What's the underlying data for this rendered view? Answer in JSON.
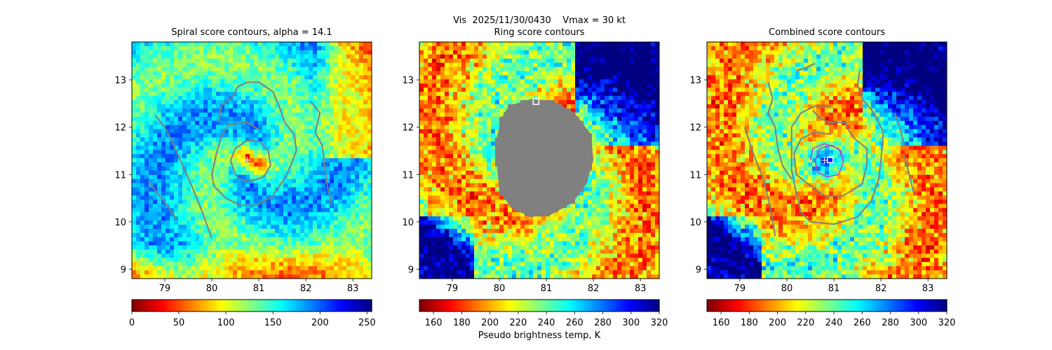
{
  "figure": {
    "suptitle": "Vis  2025/11/30/0430    Vmax = 30 kt",
    "colorbar_label": "Pseudo brightness temp, K"
  },
  "chart_data": [
    {
      "type": "heatmap",
      "title": "Spiral score contours, alpha = 14.1",
      "xlim": [
        78.3,
        83.4
      ],
      "ylim": [
        8.8,
        13.8
      ],
      "xticks": [
        79,
        80,
        81,
        82,
        83
      ],
      "yticks": [
        9,
        10,
        11,
        12,
        13
      ],
      "colormap": "jet_r",
      "colorbar": {
        "range": [
          0,
          255
        ],
        "ticks": [
          0,
          50,
          100,
          150,
          200,
          250
        ]
      },
      "marker": {
        "type": "plus",
        "x": 80.75,
        "y": 11.3,
        "color": "#f4d0d0"
      },
      "contour_color": "#7f7f7f",
      "contours": [
        [
          [
            80.5,
            11.0
          ],
          [
            80.6,
            10.9
          ],
          [
            80.8,
            10.85
          ],
          [
            81.1,
            10.95
          ],
          [
            81.25,
            11.2
          ],
          [
            81.2,
            11.5
          ],
          [
            81.0,
            11.7
          ],
          [
            80.75,
            11.72
          ],
          [
            80.5,
            11.55
          ],
          [
            80.4,
            11.3
          ],
          [
            80.5,
            11.0
          ]
        ],
        [
          [
            81.0,
            11.95
          ],
          [
            80.75,
            12.1
          ],
          [
            80.35,
            12.05
          ],
          [
            80.2,
            11.8
          ],
          [
            80.1,
            11.45
          ],
          [
            80.0,
            11.0
          ],
          [
            80.05,
            10.75
          ],
          [
            80.3,
            10.5
          ],
          [
            80.6,
            10.35
          ],
          [
            80.95,
            10.35
          ],
          [
            81.3,
            10.55
          ],
          [
            81.6,
            11.0
          ],
          [
            81.8,
            11.5
          ],
          [
            81.75,
            11.85
          ],
          [
            81.55,
            12.1
          ],
          [
            81.45,
            12.4
          ],
          [
            81.3,
            12.75
          ],
          [
            81.0,
            12.95
          ],
          [
            80.75,
            12.95
          ],
          [
            80.55,
            12.85
          ],
          [
            80.45,
            12.65
          ],
          [
            80.2,
            12.45
          ],
          [
            80.15,
            12.1
          ]
        ],
        [
          [
            82.1,
            12.55
          ],
          [
            82.3,
            12.3
          ],
          [
            82.2,
            11.9
          ],
          [
            82.35,
            11.6
          ],
          [
            82.4,
            11.2
          ],
          [
            82.45,
            10.8
          ],
          [
            82.55,
            10.35
          ]
        ],
        [
          [
            78.8,
            12.25
          ],
          [
            79.0,
            12.0
          ],
          [
            79.2,
            11.6
          ],
          [
            79.4,
            11.15
          ],
          [
            79.6,
            10.7
          ],
          [
            79.8,
            10.2
          ],
          [
            80.0,
            9.65
          ]
        ],
        [
          [
            78.65,
            10.85
          ],
          [
            78.85,
            10.6
          ],
          [
            79.05,
            10.35
          ],
          [
            79.25,
            10.05
          ]
        ]
      ]
    },
    {
      "type": "heatmap",
      "title": "Ring score contours",
      "xlim": [
        78.3,
        83.4
      ],
      "ylim": [
        8.8,
        13.8
      ],
      "xticks": [
        79,
        80,
        81,
        82,
        83
      ],
      "yticks": [
        9,
        10,
        11,
        12,
        13
      ],
      "colormap": "jet_r",
      "colorbar": {
        "range": [
          150,
          320
        ],
        "ticks": [
          160,
          180,
          200,
          220,
          240,
          260,
          280,
          300,
          320
        ]
      },
      "marker": {
        "type": "square",
        "x": 80.78,
        "y": 12.54,
        "color": "#ffffff"
      },
      "masked_region": {
        "color": "#808080",
        "outline": [
          [
            80.2,
            12.45
          ],
          [
            80.7,
            12.6
          ],
          [
            81.15,
            12.55
          ],
          [
            81.6,
            12.3
          ],
          [
            81.95,
            11.85
          ],
          [
            82.0,
            11.3
          ],
          [
            81.85,
            10.8
          ],
          [
            81.55,
            10.4
          ],
          [
            81.1,
            10.15
          ],
          [
            80.65,
            10.1
          ],
          [
            80.25,
            10.3
          ],
          [
            80.0,
            10.65
          ],
          [
            79.95,
            11.2
          ],
          [
            79.95,
            11.8
          ],
          [
            80.05,
            12.2
          ],
          [
            80.2,
            12.45
          ]
        ]
      },
      "contours": []
    },
    {
      "type": "heatmap",
      "title": "Combined score contours",
      "xlim": [
        78.3,
        83.4
      ],
      "ylim": [
        8.8,
        13.8
      ],
      "xticks": [
        79,
        80,
        81,
        82,
        83
      ],
      "yticks": [
        9,
        10,
        11,
        12,
        13
      ],
      "colormap": "jet_r",
      "colorbar": {
        "range": [
          150,
          320
        ],
        "ticks": [
          160,
          180,
          200,
          220,
          240,
          260,
          280,
          300,
          320
        ]
      },
      "marker": {
        "type": "square",
        "x": 80.92,
        "y": 11.31,
        "color": "#ffffff"
      },
      "marker2": {
        "type": "plus",
        "x": 80.8,
        "y": 11.3,
        "color": "#f4d0d0"
      },
      "contour_color": "#7f7f7f",
      "ring_color": "#c040c0",
      "rings": [
        [
          [
            80.6,
            11.3
          ],
          [
            80.65,
            11.05
          ],
          [
            80.85,
            10.95
          ],
          [
            81.1,
            11.0
          ],
          [
            81.2,
            11.25
          ],
          [
            81.15,
            11.5
          ],
          [
            80.95,
            11.62
          ],
          [
            80.7,
            11.55
          ],
          [
            80.6,
            11.3
          ]
        ],
        [
          [
            80.5,
            11.3
          ],
          [
            80.55,
            11.55
          ],
          [
            80.8,
            11.65
          ],
          [
            81.1,
            11.55
          ],
          [
            81.2,
            11.3
          ]
        ]
      ],
      "contours": [
        [
          [
            80.95,
            11.85
          ],
          [
            80.6,
            11.9
          ],
          [
            80.3,
            11.75
          ],
          [
            80.15,
            11.45
          ],
          [
            80.2,
            11.0
          ],
          [
            80.45,
            10.8
          ],
          [
            80.8,
            10.55
          ],
          [
            81.2,
            10.55
          ],
          [
            81.6,
            10.8
          ],
          [
            81.7,
            11.2
          ],
          [
            81.7,
            11.55
          ],
          [
            81.45,
            11.75
          ],
          [
            81.3,
            11.95
          ],
          [
            81.25,
            12.1
          ],
          [
            80.9,
            12.1
          ],
          [
            80.7,
            12.2
          ],
          [
            80.55,
            12.35
          ]
        ],
        [
          [
            80.95,
            12.45
          ],
          [
            80.6,
            12.45
          ],
          [
            80.3,
            12.3
          ],
          [
            80.1,
            12.0
          ],
          [
            80.1,
            11.6
          ],
          [
            80.1,
            11.1
          ],
          [
            80.2,
            10.6
          ],
          [
            80.3,
            10.2
          ],
          [
            80.5,
            10.0
          ],
          [
            81.0,
            9.95
          ],
          [
            81.5,
            10.1
          ],
          [
            81.8,
            10.45
          ],
          [
            81.95,
            10.9
          ],
          [
            82.0,
            11.3
          ],
          [
            82.05,
            11.9
          ],
          [
            81.85,
            12.3
          ],
          [
            81.6,
            12.6
          ],
          [
            81.5,
            12.9
          ],
          [
            81.55,
            13.2
          ]
        ],
        [
          [
            79.6,
            12.95
          ],
          [
            79.7,
            12.6
          ],
          [
            79.6,
            12.3
          ],
          [
            79.75,
            12.0
          ],
          [
            79.8,
            11.6
          ],
          [
            79.9,
            11.2
          ],
          [
            80.1,
            10.9
          ]
        ],
        [
          [
            79.1,
            12.0
          ],
          [
            79.3,
            11.4
          ],
          [
            79.5,
            10.9
          ],
          [
            79.65,
            10.3
          ],
          [
            79.75,
            9.7
          ]
        ],
        [
          [
            82.5,
            11.4
          ],
          [
            82.6,
            11.0
          ],
          [
            82.7,
            10.6
          ]
        ],
        [
          [
            82.3,
            12.3
          ],
          [
            82.4,
            12.0
          ],
          [
            82.5,
            11.6
          ]
        ],
        [
          [
            80.2,
            13.2
          ],
          [
            80.4,
            13.25
          ],
          [
            80.6,
            13.35
          ]
        ]
      ]
    }
  ]
}
